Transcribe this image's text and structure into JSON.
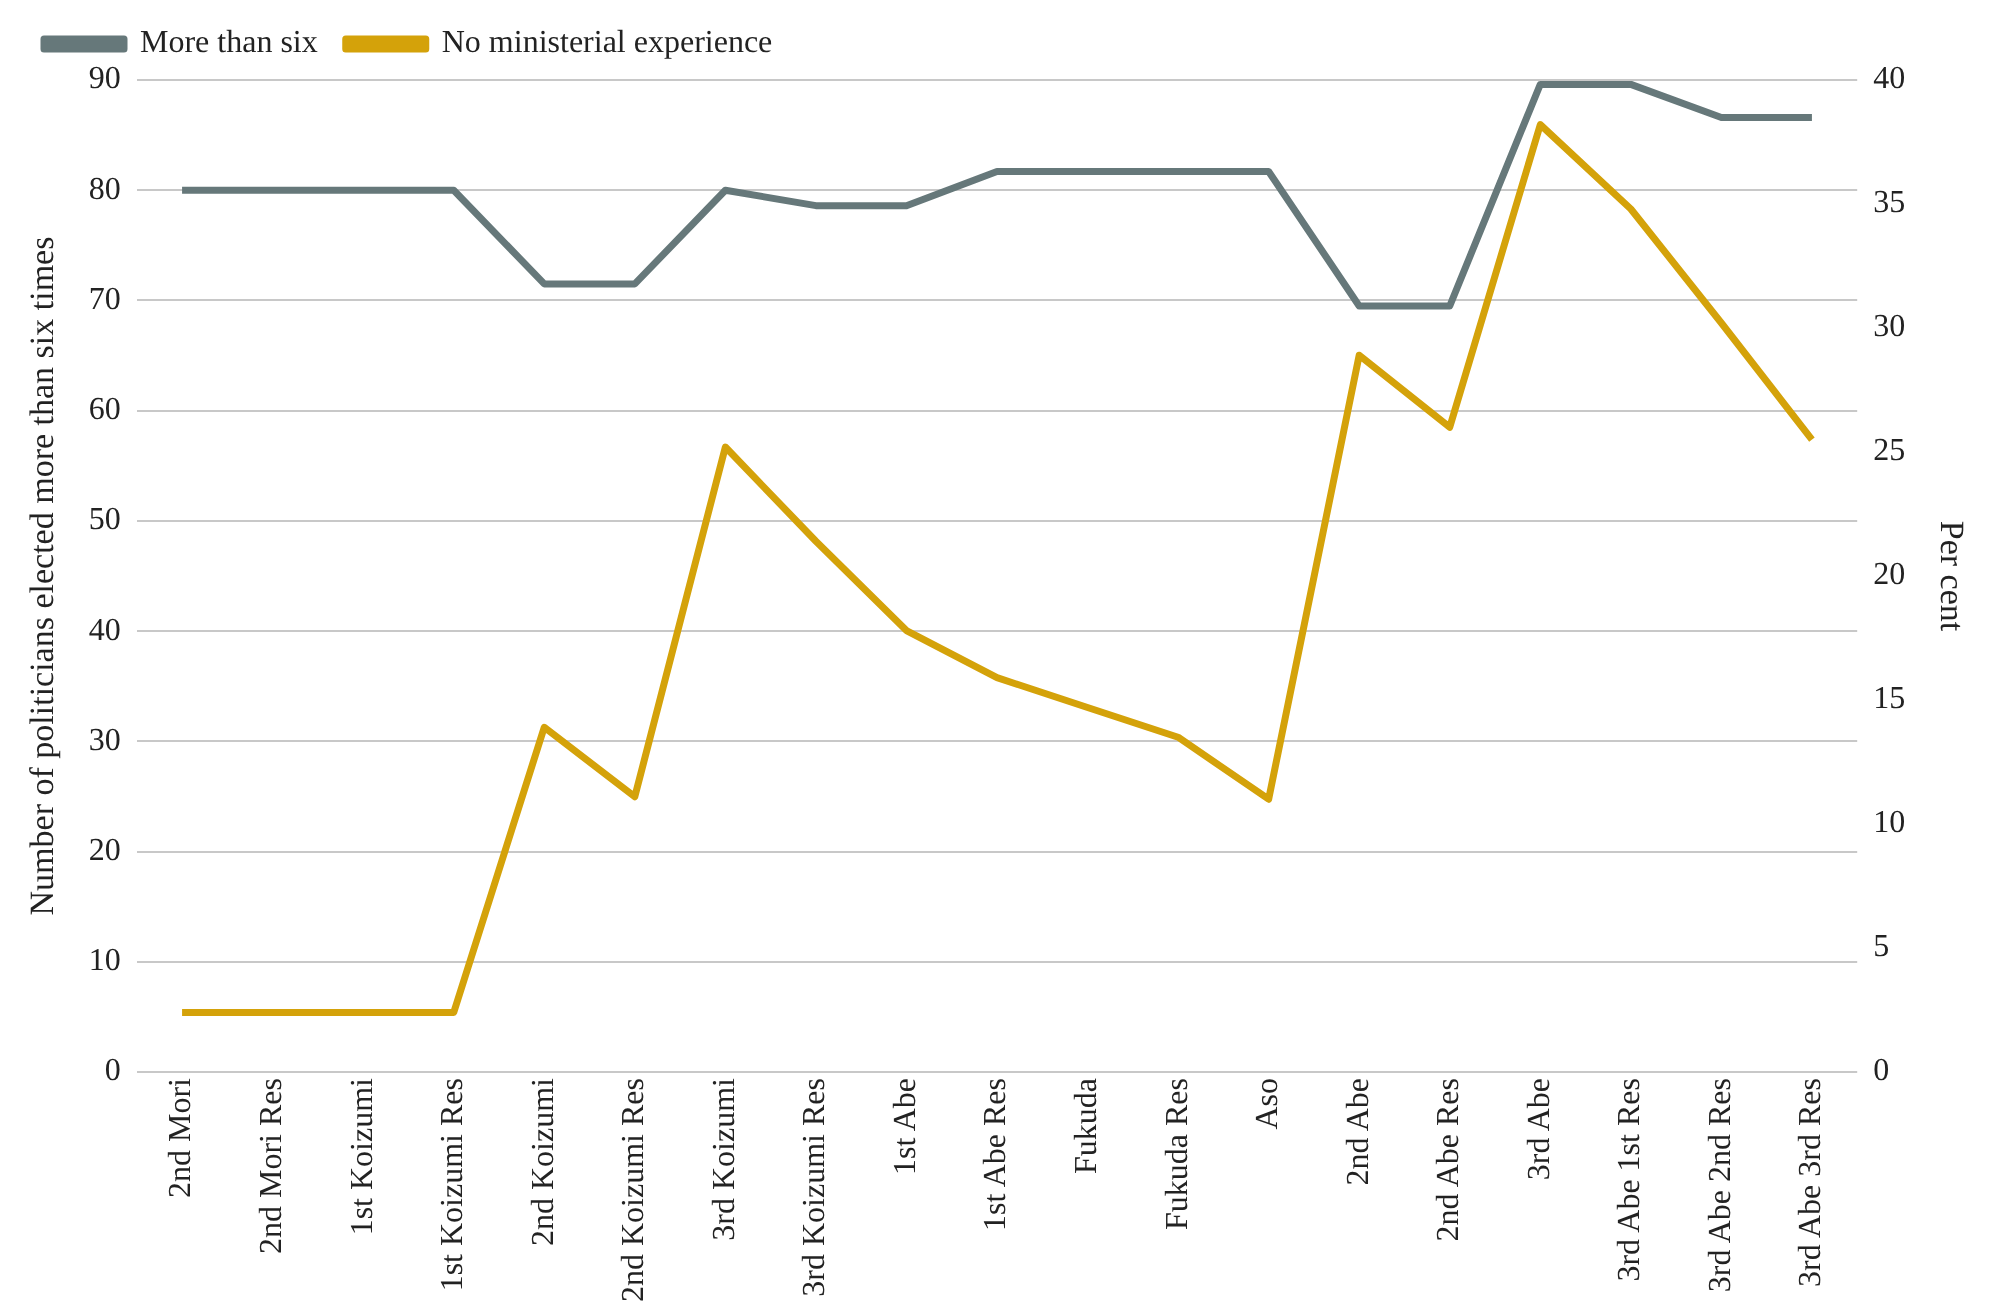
{
  "chart_data": {
    "type": "line",
    "categories": [
      "2nd Mori",
      "2nd Mori Res",
      "1st Koizumi",
      "1st Koizumi Res",
      "2nd Koizumi",
      "2nd Koizumi Res",
      "3rd Koizumi",
      "3rd Koizumi Res",
      "1st Abe",
      "1st Abe Res",
      "Fukuda",
      "Fukuda Res",
      "Aso",
      "2nd Abe",
      "2nd Abe Res",
      "3rd Abe",
      "3rd Abe 1st Res",
      "3rd Abe 2nd Res",
      "3rd Abe 3rd Res"
    ],
    "series": [
      {
        "name": "More than six",
        "color": "#66787a",
        "values": [
          80,
          80,
          80,
          80,
          71.5,
          71.5,
          80,
          78.6,
          78.6,
          81.7,
          81.7,
          81.7,
          81.7,
          69.5,
          69.5,
          89.6,
          89.6,
          86.6,
          86.6
        ]
      },
      {
        "name": "No ministerial experience",
        "color": "#d4a20a",
        "axis": "y2",
        "values": [
          2.4,
          2.4,
          2.4,
          2.4,
          13.9,
          11.1,
          25.2,
          21.4,
          17.8,
          15.9,
          14.7,
          13.5,
          11.0,
          28.9,
          26.0,
          38.2,
          34.8,
          30.2,
          25.5
        ]
      }
    ],
    "ylabel": "Number of politicians elected more than six times",
    "y2label": "Per cent",
    "ylim": [
      0,
      90
    ],
    "yticks": [
      0,
      10,
      20,
      30,
      40,
      50,
      60,
      70,
      80,
      90
    ],
    "y2lim": [
      0,
      40
    ],
    "y2ticks": [
      0,
      5,
      10,
      15,
      20,
      25,
      30,
      35,
      40
    ],
    "grid": "y",
    "legend": "top left",
    "marker": "none",
    "line_style": "solid"
  }
}
